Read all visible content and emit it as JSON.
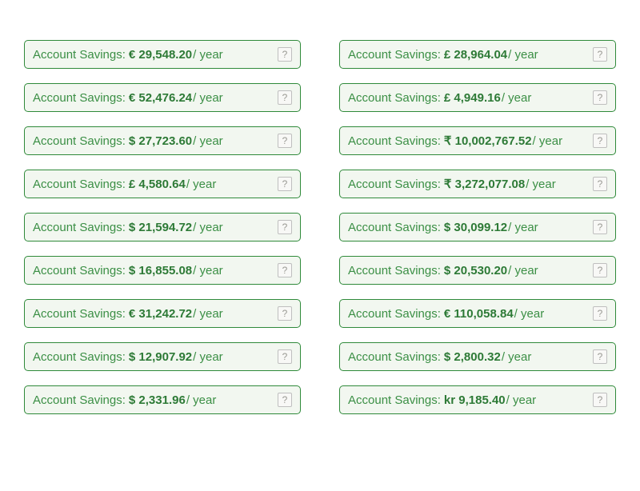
{
  "label_text": "Account Savings: ",
  "period_text": " / year",
  "help_text": "?",
  "card_border_color": "#2f8a3a",
  "card_bg_color": "#f2f7f0",
  "text_color": "#3b8f45",
  "amount_color": "#2d7a36",
  "columns": [
    [
      {
        "amount": "€ 29,548.20"
      },
      {
        "amount": "€ 52,476.24"
      },
      {
        "amount": "$ 27,723.60"
      },
      {
        "amount": "£ 4,580.64"
      },
      {
        "amount": "$ 21,594.72"
      },
      {
        "amount": "$ 16,855.08"
      },
      {
        "amount": "€ 31,242.72"
      },
      {
        "amount": "$ 12,907.92"
      },
      {
        "amount": "$ 2,331.96"
      }
    ],
    [
      {
        "amount": "£ 28,964.04"
      },
      {
        "amount": "£ 4,949.16"
      },
      {
        "amount": "₹ 10,002,767.52"
      },
      {
        "amount": "₹ 3,272,077.08"
      },
      {
        "amount": "$ 30,099.12"
      },
      {
        "amount": "$ 20,530.20"
      },
      {
        "amount": "€ 110,058.84"
      },
      {
        "amount": "$ 2,800.32"
      },
      {
        "amount": "kr 9,185.40"
      }
    ]
  ]
}
